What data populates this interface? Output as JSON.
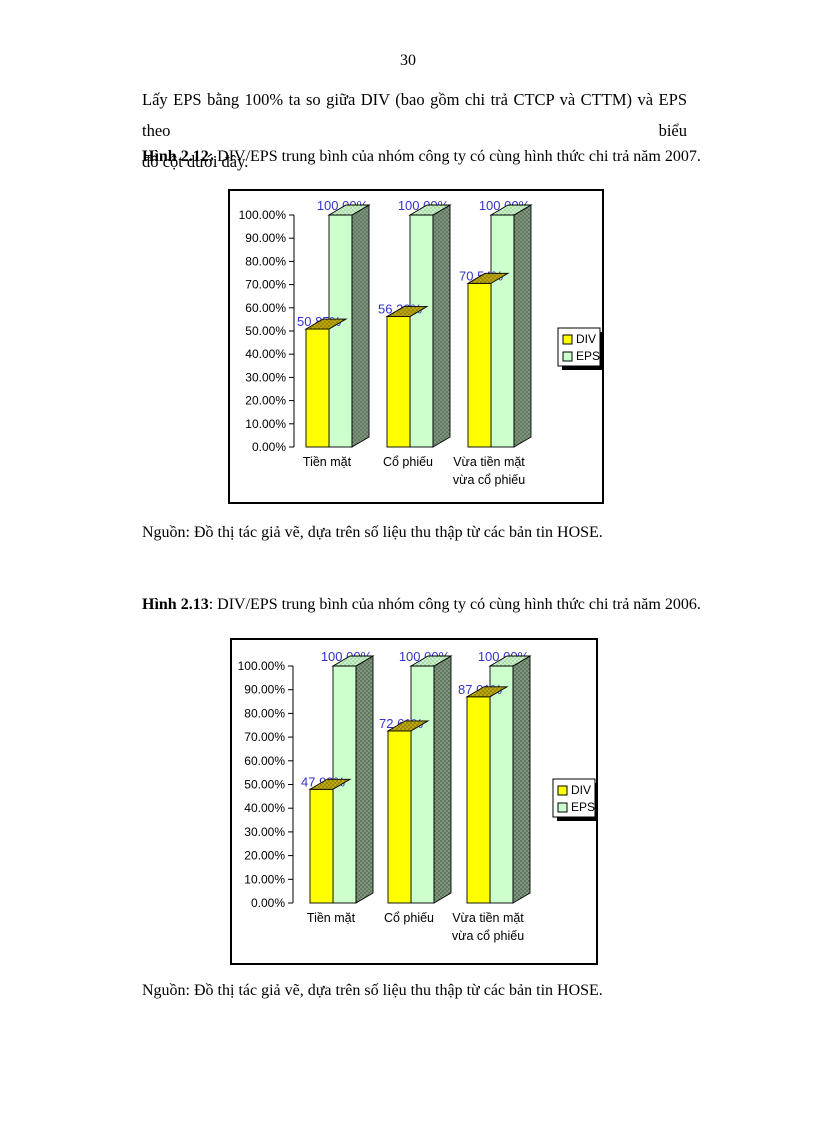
{
  "page": {
    "number": "30",
    "paragraph": {
      "line1": "Lấy EPS bằng 100% ta so giữa DIV (bao gồm chi trả CTCP và CTTM) và EPS theo biểu",
      "line2": "đồ cột dưới đây."
    },
    "captions": {
      "fig212_label": "Hình 2.12",
      "fig212_text": ": DIV/EPS trung bình của nhóm công ty có cùng hình thức chi trả năm 2007.",
      "fig213_label": "Hình 2.13",
      "fig213_text": ": DIV/EPS trung bình của nhóm công ty có cùng hình thức chi trả năm 2006."
    },
    "source_note_1": "Nguồn: Đồ thị tác giả vẽ, dựa trên số liệu thu thập từ các bản tin HOSE.",
    "source_note_2": "Nguồn: Đồ thị tác giả vẽ, dựa trên số liệu thu thập từ các bản tin HOSE."
  },
  "colors": {
    "div_fill": "#FFFF00",
    "div_top": "#BCA70E",
    "div_top_dot": "#756800",
    "eps_fill": "#CCFFCC",
    "eps_top": "#C9F2C9",
    "eps_top_dot": "#8CBE8C",
    "eps_side": "#7E967E",
    "eps_side_dot": "#45553F",
    "value_label": "#3333CC",
    "chart_border": "#000000",
    "legend_shadow": "#000000"
  },
  "chart_data": [
    {
      "id": "fig-2-12",
      "type": "bar",
      "style": "3d-clustered",
      "title": "DIV/EPS trung bình của nhóm công ty có cùng hình thức chi trả năm 2007",
      "categories": [
        "Tiền mặt",
        "Cổ phiếu",
        "Vừa tiền mặt\nvừa cổ phiếu"
      ],
      "series": [
        {
          "name": "DIV",
          "values": [
            50.85,
            56.22,
            70.54
          ]
        },
        {
          "name": "EPS",
          "values": [
            100,
            100,
            100
          ]
        }
      ],
      "xlabel": "",
      "ylabel": "",
      "ylim": [
        0,
        100
      ],
      "ytick_step": 10,
      "ytick_format": "percent-2dp",
      "grid": false,
      "legend_position": "right",
      "value_labels_visible": true
    },
    {
      "id": "fig-2-13",
      "type": "bar",
      "style": "3d-clustered",
      "title": "DIV/EPS trung bình của nhóm công ty có cùng hình thức chi trả năm 2006",
      "categories": [
        "Tiền mặt",
        "Cổ phiếu",
        "Vừa tiền mặt\nvừa cổ phiếu"
      ],
      "series": [
        {
          "name": "DIV",
          "values": [
            47.98,
            72.61,
            87.01
          ]
        },
        {
          "name": "EPS",
          "values": [
            100,
            100,
            100
          ]
        }
      ],
      "xlabel": "",
      "ylabel": "",
      "ylim": [
        0,
        100
      ],
      "ytick_step": 10,
      "ytick_format": "percent-2dp",
      "grid": false,
      "legend_position": "right",
      "value_labels_visible": true
    }
  ]
}
